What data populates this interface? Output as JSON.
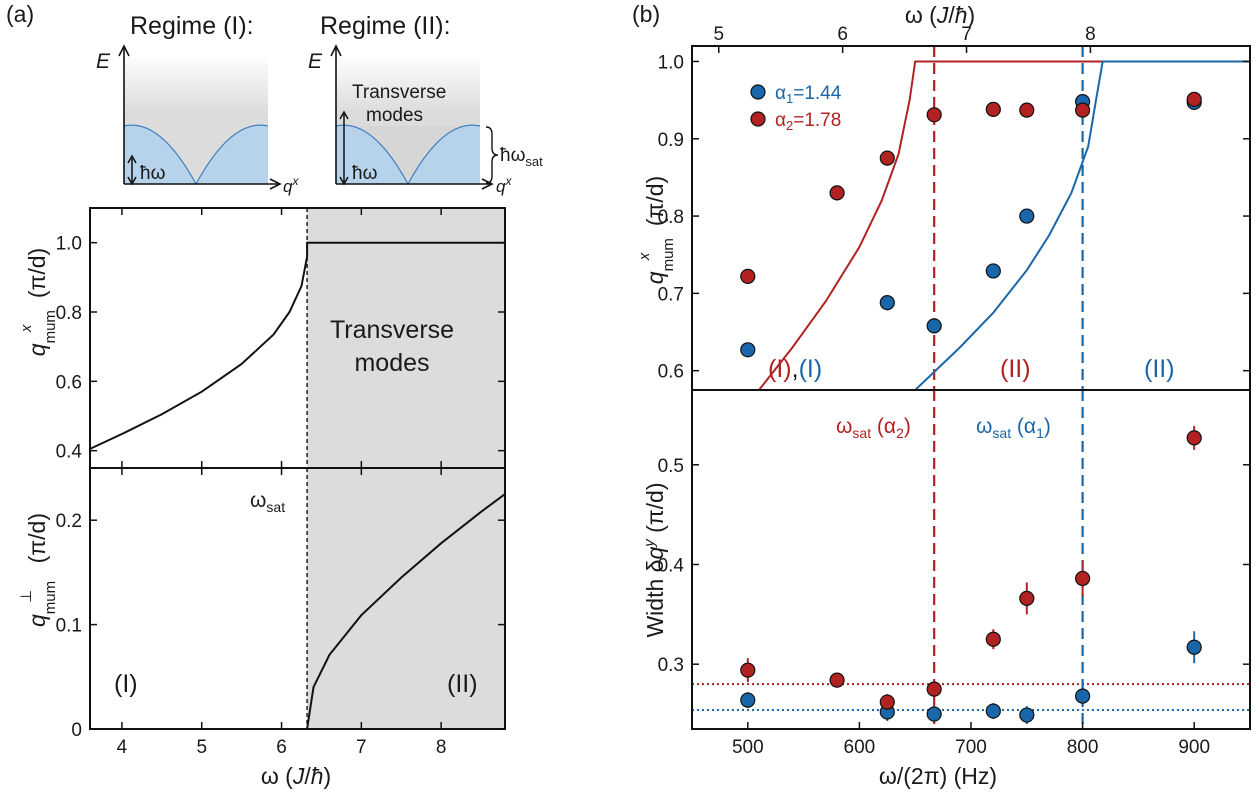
{
  "panel_a": {
    "label": "(a)",
    "insets": {
      "regime1_title": "Regime (I):",
      "regime2_title": "Regime (II):",
      "energy_label": "E",
      "q_label": "q",
      "q_sup": "x",
      "hbar_omega": "ħω",
      "transverse_line1": "Transverse",
      "transverse_line2": "modes",
      "hbar_omega_sat_main": "ħω",
      "hbar_omega_sat_sub": "sat"
    },
    "shaded_line1": "Transverse",
    "shaded_line2": "modes",
    "omega_sat_main": "ω",
    "omega_sat_sub": "sat",
    "regime_I": "(I)",
    "regime_II": "(II)"
  },
  "panel_b": {
    "label": "(b)",
    "legend": [
      {
        "main": "α",
        "sub": "1",
        "value": "=1.44",
        "color": "#1a66aa"
      },
      {
        "main": "α",
        "sub": "2",
        "value": "=1.78",
        "color": "#b22222"
      }
    ],
    "top_regime_left_a": "(I)",
    "top_regime_comma": ",",
    "top_regime_left_b": "(I)",
    "top_regime_mid": "(II)",
    "top_regime_right": "(II)",
    "omega_sat_alpha2": {
      "main": "ω",
      "sub": "sat",
      "open": " (α",
      "alpha_sub": "2",
      "close": ")"
    },
    "omega_sat_alpha1": {
      "main": "ω",
      "sub": "sat",
      "open": " (α",
      "alpha_sub": "1",
      "close": ")"
    }
  },
  "colors": {
    "red": "#b22222",
    "blue": "#1a66aa",
    "shade": "#dcdcdc",
    "band": "#b7d3ec"
  },
  "chart_data": [
    {
      "id": "a-top",
      "type": "line",
      "x_label": "ω (J/ħ)",
      "y_label": "q^x_mum (π/d)",
      "xlim": [
        3.6,
        8.8
      ],
      "ylim": [
        0.35,
        1.1
      ],
      "x_ticks": [
        4,
        5,
        6,
        7,
        8
      ],
      "y_ticks": [
        0.4,
        0.6,
        0.8,
        1.0
      ],
      "y_tick_labels": [
        "0.4",
        "0.6",
        "0.8",
        "1.0"
      ],
      "omega_sat": 6.32,
      "shaded_region": [
        6.32,
        8.8
      ],
      "series": [
        {
          "x": [
            3.6,
            4.0,
            4.5,
            5.0,
            5.5,
            5.9,
            6.1,
            6.25,
            6.32,
            6.32,
            7.0,
            8.0,
            8.8
          ],
          "y": [
            0.405,
            0.448,
            0.505,
            0.57,
            0.65,
            0.735,
            0.8,
            0.875,
            0.96,
            1.0,
            1.0,
            1.0,
            1.0
          ]
        }
      ]
    },
    {
      "id": "a-bottom",
      "type": "line",
      "x_label": "ω (J/ħ)",
      "y_label": "q^⊥_mum (π/d)",
      "xlim": [
        3.6,
        8.8
      ],
      "ylim": [
        0,
        0.25
      ],
      "x_ticks": [
        4,
        5,
        6,
        7,
        8
      ],
      "x_tick_labels": [
        "4",
        "5",
        "6",
        "7",
        "8"
      ],
      "y_ticks": [
        0,
        0.1,
        0.2
      ],
      "y_tick_labels": [
        "0",
        "0.1",
        "0.2"
      ],
      "omega_sat": 6.32,
      "shaded_region": [
        6.32,
        8.8
      ],
      "series": [
        {
          "x": [
            6.32,
            6.4,
            6.6,
            7.0,
            7.5,
            8.0,
            8.5,
            8.8
          ],
          "y": [
            0.0,
            0.04,
            0.071,
            0.109,
            0.145,
            0.178,
            0.208,
            0.225
          ]
        }
      ]
    },
    {
      "id": "b-top",
      "type": "scatter",
      "x_label": "ω (J/ħ)",
      "y_label": "q^x_mum (π/d)",
      "xlim": [
        450,
        950
      ],
      "ylim": [
        0.575,
        1.02
      ],
      "y_ticks": [
        0.6,
        0.7,
        0.8,
        0.9,
        1.0
      ],
      "y_tick_labels": [
        "0.6",
        "0.7",
        "0.8",
        "0.9",
        "1.0"
      ],
      "top_axis_ticks": [
        {
          "hz": 442,
          "label": "5"
        },
        {
          "hz": 553,
          "label": "6"
        },
        {
          "hz": 664,
          "label": "7"
        },
        {
          "hz": 775,
          "label": "8"
        }
      ],
      "top_axis_label": "ω (J/ħ)",
      "vlines": [
        {
          "x": 667,
          "color": "red"
        },
        {
          "x": 800,
          "color": "blue"
        }
      ],
      "series": [
        {
          "name": "α1=1.44",
          "color": "blue",
          "x": [
            500,
            625,
            667,
            720,
            750,
            800,
            900
          ],
          "y": [
            0.627,
            0.688,
            0.658,
            0.729,
            0.8,
            0.948,
            0.947
          ]
        },
        {
          "name": "α2=1.78",
          "color": "red",
          "x": [
            500,
            580,
            625,
            667,
            720,
            750,
            800,
            900
          ],
          "y": [
            0.722,
            0.83,
            0.875,
            0.931,
            0.938,
            0.937,
            0.937,
            0.951
          ]
        }
      ],
      "model_curves": [
        {
          "color": "red",
          "x": [
            510,
            540,
            570,
            600,
            620,
            635,
            645,
            650,
            950
          ],
          "y": [
            0.575,
            0.63,
            0.69,
            0.76,
            0.82,
            0.88,
            0.95,
            1.0,
            1.0
          ]
        },
        {
          "color": "blue",
          "x": [
            650,
            690,
            720,
            750,
            770,
            790,
            805,
            812,
            818,
            950
          ],
          "y": [
            0.575,
            0.63,
            0.675,
            0.73,
            0.775,
            0.83,
            0.89,
            0.95,
            1.0,
            1.0
          ]
        }
      ]
    },
    {
      "id": "b-bottom",
      "type": "scatter",
      "x_label": "ω/(2π) (Hz)",
      "y_label": "Width δq^y (π/d)",
      "xlim": [
        450,
        950
      ],
      "ylim": [
        0.235,
        0.575
      ],
      "x_ticks": [
        500,
        600,
        700,
        800,
        900
      ],
      "x_tick_labels": [
        "500",
        "600",
        "700",
        "800",
        "900"
      ],
      "y_ticks": [
        0.3,
        0.4,
        0.5
      ],
      "y_tick_labels": [
        "0.3",
        "0.4",
        "0.5"
      ],
      "hlines": [
        {
          "y": 0.28,
          "color": "red"
        },
        {
          "y": 0.254,
          "color": "blue"
        }
      ],
      "vlines": [
        {
          "x": 667,
          "color": "red"
        },
        {
          "x": 800,
          "color": "blue"
        }
      ],
      "series": [
        {
          "name": "α1=1.44",
          "color": "blue",
          "x": [
            500,
            625,
            667,
            720,
            750,
            800,
            900
          ],
          "y": [
            0.264,
            0.252,
            0.25,
            0.253,
            0.249,
            0.268,
            0.317
          ],
          "err": [
            0.008,
            0.009,
            0.008,
            0.008,
            0.009,
            0.009,
            0.016
          ]
        },
        {
          "name": "α2=1.78",
          "color": "red",
          "x": [
            500,
            580,
            625,
            667,
            720,
            750,
            800,
            900
          ],
          "y": [
            0.294,
            0.284,
            0.262,
            0.275,
            0.325,
            0.366,
            0.386,
            0.527
          ],
          "err": [
            0.012,
            0.005,
            0.008,
            0.006,
            0.01,
            0.016,
            0.018,
            0.012
          ]
        }
      ]
    }
  ]
}
